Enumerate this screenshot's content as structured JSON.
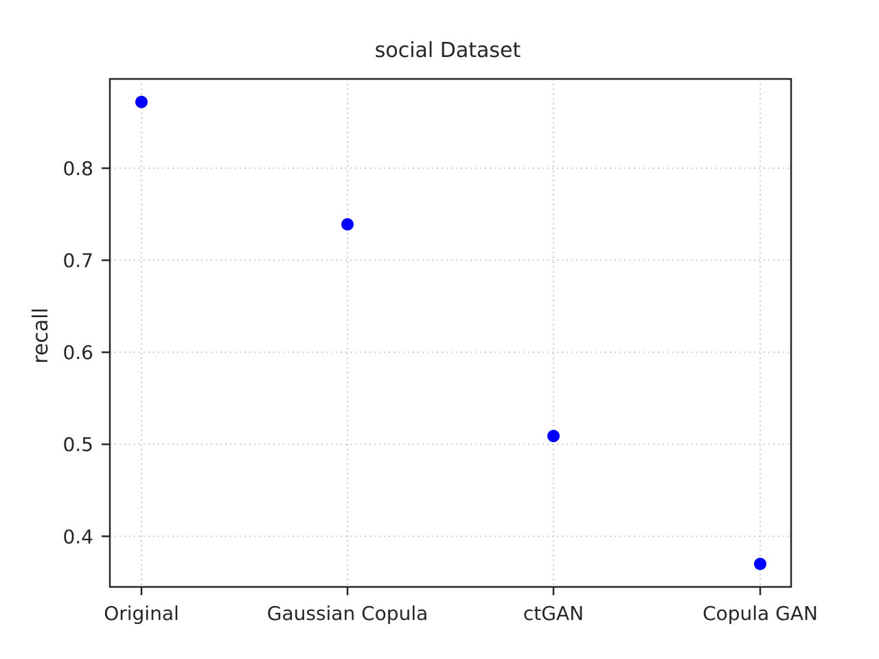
{
  "chart_data": {
    "type": "scatter",
    "title": "social Dataset",
    "xlabel": "",
    "ylabel": "recall",
    "categories": [
      "Original",
      "Gaussian Copula",
      "ctGAN",
      "Copula GAN"
    ],
    "series": [
      {
        "values": [
          0.872,
          0.739,
          0.509,
          0.37
        ],
        "color": "#0000ff"
      }
    ],
    "ylim": [
      0.345,
      0.897
    ],
    "yticks": [
      0.4,
      0.5,
      0.6,
      0.7,
      0.8
    ],
    "ytick_labels": [
      "0.4",
      "0.5",
      "0.6",
      "0.7",
      "0.8"
    ],
    "grid": true,
    "grid_style": "dotted"
  }
}
